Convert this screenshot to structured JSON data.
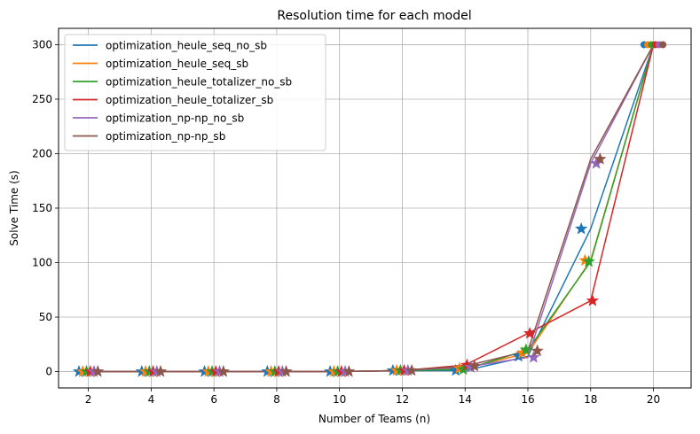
{
  "chart_data": {
    "type": "line",
    "title": "Resolution time for each model",
    "xlabel": "Number of Teams (n)",
    "ylabel": "Solve Time (s)",
    "xlim": [
      1.05,
      21.2
    ],
    "ylim": [
      -15,
      315
    ],
    "xticks": [
      2,
      4,
      6,
      8,
      10,
      12,
      14,
      16,
      18,
      20
    ],
    "yticks": [
      0,
      50,
      100,
      150,
      200,
      250,
      300
    ],
    "grid": true,
    "legend_position": "top-left",
    "marker_offsets": [
      -0.3,
      -0.18,
      -0.06,
      0.06,
      0.18,
      0.3
    ],
    "timeout_marker": "circle",
    "other_marker": "star",
    "series": [
      {
        "name": "optimization_heule_seq_no_sb",
        "color": "#1f77b4",
        "x": [
          2,
          4,
          6,
          8,
          10,
          12,
          14,
          16,
          18,
          20
        ],
        "y": [
          0,
          0,
          0,
          0,
          0,
          1,
          1,
          14,
          131,
          300
        ]
      },
      {
        "name": "optimization_heule_seq_sb",
        "color": "#ff7f0e",
        "x": [
          2,
          4,
          6,
          8,
          10,
          12,
          14,
          16,
          18,
          20
        ],
        "y": [
          0,
          0,
          0,
          0,
          0,
          1,
          3,
          17,
          102,
          300
        ]
      },
      {
        "name": "optimization_heule_totalizer_no_sb",
        "color": "#2ca02c",
        "x": [
          2,
          4,
          6,
          8,
          10,
          12,
          14,
          16,
          18,
          20
        ],
        "y": [
          0,
          0,
          0,
          0,
          0,
          1,
          2,
          20,
          101,
          300
        ]
      },
      {
        "name": "optimization_heule_totalizer_sb",
        "color": "#d62728",
        "x": [
          2,
          4,
          6,
          8,
          10,
          12,
          14,
          16,
          18,
          20
        ],
        "y": [
          0,
          0,
          0,
          0,
          0,
          1,
          6,
          35,
          65,
          300
        ]
      },
      {
        "name": "optimization_np-np_no_sb",
        "color": "#9467bd",
        "x": [
          2,
          4,
          6,
          8,
          10,
          12,
          14,
          16,
          18,
          20
        ],
        "y": [
          0,
          0,
          0,
          0,
          0,
          1,
          4,
          13,
          191,
          300
        ]
      },
      {
        "name": "optimization_np-np_sb",
        "color": "#8c564b",
        "x": [
          2,
          4,
          6,
          8,
          10,
          12,
          14,
          16,
          18,
          20
        ],
        "y": [
          0,
          0,
          0,
          0,
          0,
          1,
          5,
          19,
          195,
          300
        ]
      }
    ]
  }
}
